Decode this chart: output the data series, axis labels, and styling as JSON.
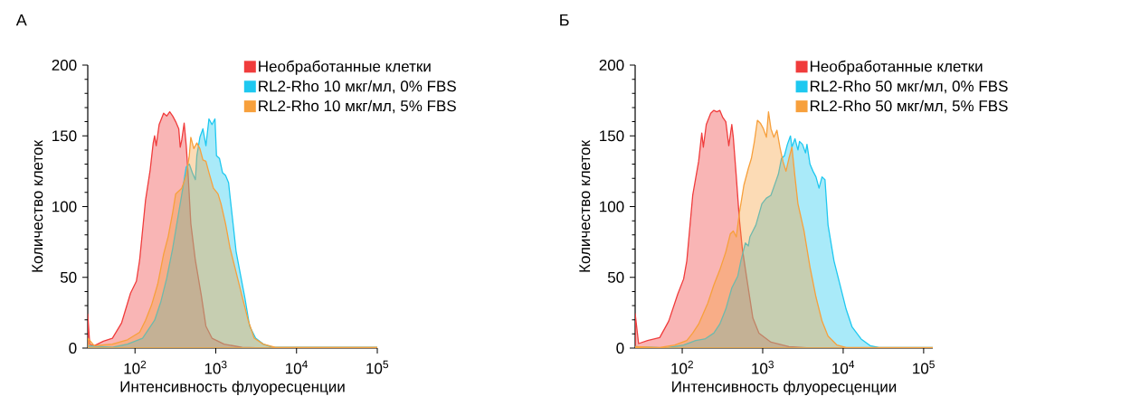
{
  "chart_data": [
    {
      "type": "area",
      "title": "А",
      "xlabel": "Интенсивность флуоресценции",
      "ylabel": "Количество клеток",
      "log": "x",
      "xlim": [
        26,
        100000
      ],
      "xticks": [
        {
          "value": 100,
          "label": "10$^{2}$"
        },
        {
          "value": 1000,
          "label": "10$^{3}$"
        },
        {
          "value": 10000,
          "label": "10$^{4}$"
        },
        {
          "value": 100000,
          "label": "10$^{5}$"
        }
      ],
      "ylim": [
        0,
        200
      ],
      "yticks": [
        0,
        50,
        100,
        150,
        200
      ],
      "legend": "top right",
      "series": [
        {
          "name": "Необработанные клетки",
          "color": "#f03c3c",
          "x": [
            26,
            27.5,
            31.3,
            40.6,
            52.5,
            68,
            88,
            104,
            114,
            135,
            154,
            168,
            175,
            183,
            199,
            226,
            247,
            269,
            293,
            319,
            348,
            363,
            379,
            406,
            431,
            451,
            491,
            559,
            663,
            755,
            898,
            1266,
            2118,
            3870,
            100000
          ],
          "values": [
            24,
            2.8,
            1.7,
            4.9,
            7,
            17.6,
            38.8,
            47.3,
            62,
            104.6,
            125.8,
            145,
            150,
            143,
            158,
            166,
            164,
            167,
            164,
            160,
            155,
            142,
            147,
            159,
            143,
            126,
            88,
            62,
            37,
            15.5,
            7,
            2.8,
            0.6,
            0,
            0
          ]
        },
        {
          "name": "RL2-Rho 10 мкг/мл,  0% FBS",
          "color": "#1ec8f0",
          "x": [
            26,
            52.5,
            80.7,
            124,
            175,
            208,
            247,
            293,
            348,
            396,
            431,
            470,
            513,
            559,
            583,
            636,
            693,
            755,
            823,
            898,
            977,
            1021,
            1112,
            1212,
            1321,
            1439,
            1503,
            1637,
            1783,
            2028,
            2307,
            2625,
            3119,
            3870,
            5012,
            100000
          ],
          "values": [
            1.7,
            0.6,
            2.8,
            7,
            19.7,
            32.4,
            49.4,
            70.6,
            96,
            115,
            128,
            130,
            124,
            119,
            136,
            149,
            155,
            143,
            162,
            158,
            162,
            136,
            134,
            124,
            122,
            117,
            107,
            88,
            68.5,
            51.5,
            34.6,
            15.5,
            7,
            2.8,
            0.6,
            0.6
          ]
        },
        {
          "name": "RL2-Rho 10 мкг/мл,  5% FBS",
          "color": "#f7a03c",
          "x": [
            26,
            31.3,
            52.5,
            80.7,
            114,
            135,
            160,
            191,
            226,
            258,
            293,
            319,
            379,
            431,
            470,
            491,
            535,
            583,
            636,
            693,
            755,
            823,
            935,
            1065,
            1161,
            1321,
            1503,
            1783,
            2118,
            2518,
            2992,
            3870,
            5458,
            100000
          ],
          "values": [
            7,
            1.7,
            2.8,
            5.9,
            11.2,
            19.7,
            30.3,
            45.2,
            66.4,
            79,
            96,
            109,
            113,
            122,
            136,
            149,
            141,
            145,
            141,
            133,
            132,
            124,
            113,
            109,
            102,
            88,
            70.6,
            53.7,
            36.7,
            19.7,
            7,
            2.8,
            0.6,
            0.6
          ]
        }
      ]
    },
    {
      "type": "area",
      "title": "Б",
      "xlabel": "Интенсивность флуоресценции",
      "ylabel": "Количество клеток",
      "log": "x",
      "xlim": [
        26,
        130000
      ],
      "xticks": [
        {
          "value": 100,
          "label": "10$^{2}$"
        },
        {
          "value": 1000,
          "label": "10$^{3}$"
        },
        {
          "value": 10000,
          "label": "10$^{4}$"
        },
        {
          "value": 100000,
          "label": "10$^{5}$"
        }
      ],
      "ylim": [
        0,
        200
      ],
      "yticks": [
        0,
        50,
        100,
        150,
        200
      ],
      "legend": "top right",
      "series": [
        {
          "name": "Необработанные клетки",
          "color": "#f03c3c",
          "x": [
            26,
            28.7,
            37.1,
            52.5,
            68,
            88,
            104,
            114,
            135,
            160,
            175,
            183,
            199,
            226,
            247,
            269,
            293,
            319,
            348,
            379,
            413,
            431,
            470,
            513,
            559,
            636,
            755,
            898,
            1266,
            2118,
            3870,
            130000
          ],
          "values": [
            24.4,
            3.2,
            5.3,
            7.4,
            19.1,
            38.2,
            48.8,
            61.6,
            108,
            132,
            152,
            142,
            158,
            166,
            168,
            167,
            168,
            163,
            160,
            143,
            158,
            149,
            121,
            91,
            70,
            48.8,
            21.2,
            10.6,
            4.2,
            1.1,
            0,
            0
          ]
        },
        {
          "name": "RL2-Rho 50 мкг/мл,  0% FBS",
          "color": "#1ec8f0",
          "x": [
            26,
            62.4,
            104,
            147,
            191,
            247,
            293,
            348,
            413,
            491,
            535,
            609,
            663,
            693,
            823,
            977,
            1112,
            1266,
            1439,
            1567,
            1709,
            1862,
            2028,
            2213,
            2307,
            2518,
            2742,
            2864,
            3119,
            3404,
            3548,
            3870,
            4217,
            4592,
            5012,
            5458,
            5943,
            6486,
            7691,
            9141,
            10870,
            12910,
            16710,
            21630,
            27990,
            130000
          ],
          "values": [
            1.1,
            0,
            2.1,
            5.3,
            6.4,
            10.6,
            17,
            27.6,
            42.5,
            51,
            61.6,
            74.3,
            72.2,
            78.6,
            87,
            102,
            106,
            108,
            117,
            123,
            134,
            136,
            144,
            150,
            142,
            148,
            140,
            146,
            144,
            138,
            144,
            130,
            125,
            121,
            113,
            121,
            119,
            87,
            61.6,
            44.6,
            27.6,
            14.9,
            6.4,
            1.7,
            0.4,
            0.4
          ]
        },
        {
          "name": "RL2-Rho 50 мкг/мл,  5% FBS",
          "color": "#f7a03c",
          "x": [
            26,
            52.5,
            80.7,
            114,
            135,
            160,
            208,
            247,
            293,
            348,
            396,
            431,
            470,
            513,
            583,
            663,
            723,
            788,
            859,
            935,
            1021,
            1112,
            1180,
            1266,
            1377,
            1503,
            1637,
            1783,
            1945,
            2118,
            2307,
            2518,
            2742,
            3258,
            3870,
            4592,
            5458,
            6486,
            8395,
            10870,
            130000
          ],
          "values": [
            1.1,
            0.4,
            2.1,
            5.3,
            10.6,
            17,
            31.8,
            44.6,
            55.2,
            68,
            80.7,
            82.8,
            78.6,
            95.5,
            115,
            127,
            134,
            146,
            161,
            159,
            155,
            149,
            167,
            155,
            149,
            154,
            142,
            132,
            125,
            134,
            142,
            121,
            102,
            83,
            57.3,
            36.1,
            19.1,
            8.5,
            2.1,
            0.4,
            0.4
          ]
        }
      ]
    }
  ]
}
